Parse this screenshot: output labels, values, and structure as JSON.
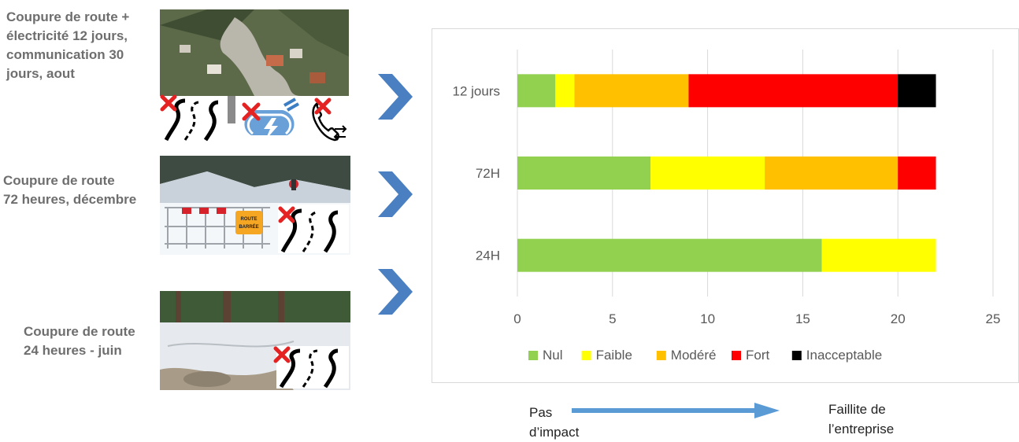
{
  "scenarios": [
    {
      "caption": "Coupure de route +\nélectricité 12 jours,\ncommunication 30\njours, aout"
    },
    {
      "caption": "Coupure de route\n72 heures, décembre"
    },
    {
      "caption": "Coupure de route\n24 heures   - juin"
    }
  ],
  "photo_sign_text": [
    "ROUTE",
    "BARRÉE"
  ],
  "flow": {
    "left_label": "Pas\nd’impact",
    "right_label": "Faillite de\nl’entreprise"
  },
  "colors": {
    "nul": "#92d050",
    "faible": "#ffff00",
    "modere": "#ffc000",
    "fort": "#ff0000",
    "inacceptable": "#000000",
    "chevron": "#4a7fc1",
    "flow_arrow": "#5b9bd5",
    "grid": "#d9d9d9",
    "cross": "#e52222"
  },
  "icons": [
    "road-icon",
    "power-plug-icon",
    "telephone-icon"
  ],
  "chart_data": {
    "type": "bar",
    "orientation": "horizontal",
    "stacked": true,
    "categories": [
      "12 jours",
      "72H",
      "24H"
    ],
    "series": [
      {
        "name": "Nul",
        "color": "#92d050",
        "values": [
          2,
          7,
          16
        ]
      },
      {
        "name": "Faible",
        "color": "#ffff00",
        "values": [
          1,
          6,
          6
        ]
      },
      {
        "name": "Modéré",
        "color": "#ffc000",
        "values": [
          6,
          7,
          0
        ]
      },
      {
        "name": "Fort",
        "color": "#ff0000",
        "values": [
          11,
          2,
          0
        ]
      },
      {
        "name": "Inacceptable",
        "color": "#000000",
        "values": [
          2,
          0,
          0
        ]
      }
    ],
    "xlim": [
      0,
      25
    ],
    "xticks": [
      0,
      5,
      10,
      15,
      20,
      25
    ],
    "grid": true,
    "legend": "bottom"
  }
}
